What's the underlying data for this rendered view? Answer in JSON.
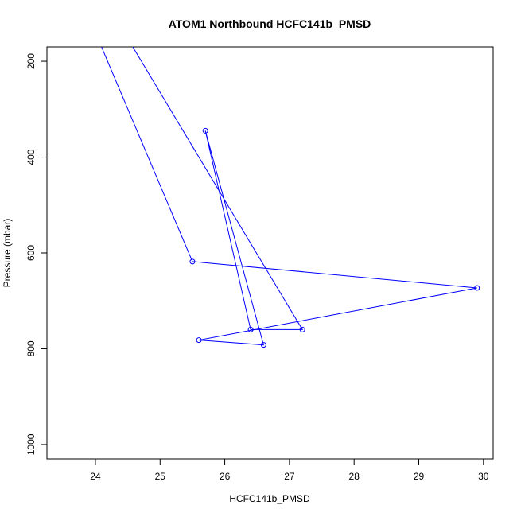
{
  "chart_data": {
    "type": "line",
    "title": "ATOM1 Northbound HCFC141b_PMSD",
    "xlabel": "HCFC141b_PMSD",
    "ylabel": "Pressure (mbar)",
    "xlim": [
      23.25,
      30.15
    ],
    "ylim": [
      1030,
      170
    ],
    "y_reversed": true,
    "x_ticks": [
      24,
      25,
      26,
      27,
      28,
      29,
      30
    ],
    "y_ticks": [
      200,
      400,
      600,
      800,
      1000
    ],
    "grid": false,
    "legend": "none",
    "series": [
      {
        "color": "#0000ff",
        "marker": "open-circle",
        "points": [
          {
            "x": 24.4,
            "y": 130,
            "visible": false
          },
          {
            "x": 27.2,
            "y": 760
          },
          {
            "x": 26.4,
            "y": 760
          },
          {
            "x": 25.7,
            "y": 345
          },
          {
            "x": 26.6,
            "y": 792
          },
          {
            "x": 25.6,
            "y": 782
          },
          {
            "x": 29.9,
            "y": 673
          },
          {
            "x": 25.5,
            "y": 618
          },
          {
            "x": 24.0,
            "y": 140,
            "visible": false
          }
        ]
      }
    ]
  }
}
